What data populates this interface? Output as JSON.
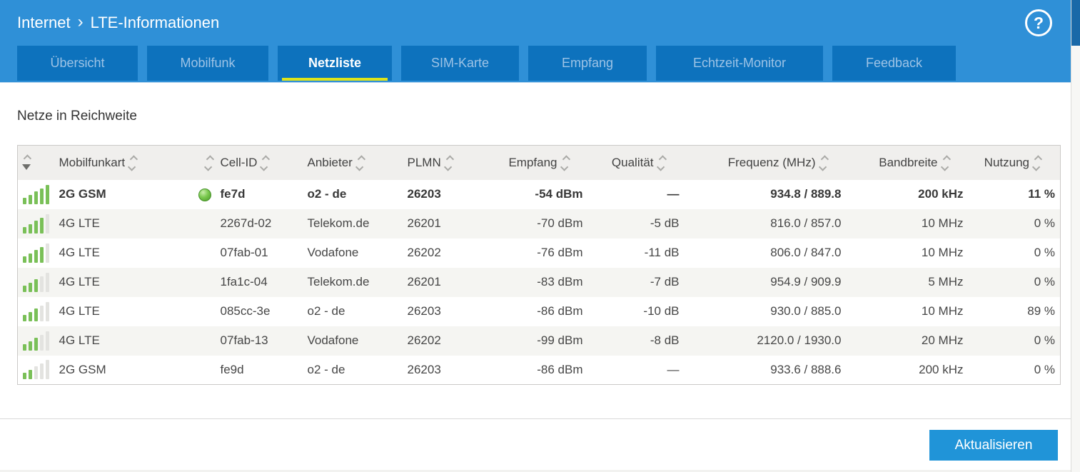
{
  "header": {
    "breadcrumb": {
      "section": "Internet",
      "separator": "›",
      "page": "LTE-Informationen"
    },
    "help_label": "?",
    "tabs": [
      {
        "label": "Übersicht",
        "active": false
      },
      {
        "label": "Mobilfunk",
        "active": false
      },
      {
        "label": "Netzliste",
        "active": true
      },
      {
        "label": "SIM-Karte",
        "active": false
      },
      {
        "label": "Empfang",
        "active": false
      },
      {
        "label": "Echtzeit-Monitor",
        "active": false
      },
      {
        "label": "Feedback",
        "active": false
      }
    ]
  },
  "content": {
    "section_title": "Netze in Reichweite",
    "table": {
      "columns": [
        {
          "key": "signal",
          "label": "",
          "align": "left",
          "sorted": "desc"
        },
        {
          "key": "mobilfunkart",
          "label": "Mobilfunkart",
          "align": "left"
        },
        {
          "key": "status",
          "label": "",
          "align": "right"
        },
        {
          "key": "cell_id",
          "label": "Cell-ID",
          "align": "left"
        },
        {
          "key": "anbieter",
          "label": "Anbieter",
          "align": "left"
        },
        {
          "key": "plmn",
          "label": "PLMN",
          "align": "left"
        },
        {
          "key": "empfang",
          "label": "Empfang",
          "align": "right"
        },
        {
          "key": "qualitaet",
          "label": "Qualität",
          "align": "right"
        },
        {
          "key": "frequenz",
          "label": "Frequenz (MHz)",
          "align": "right"
        },
        {
          "key": "bandbreite",
          "label": "Bandbreite",
          "align": "right"
        },
        {
          "key": "nutzung",
          "label": "Nutzung",
          "align": "right"
        }
      ],
      "rows": [
        {
          "signal_bars": 5,
          "mobilfunkart": "2G GSM",
          "connected": true,
          "cell_id": "fe7d",
          "anbieter": "o2 - de",
          "plmn": "26203",
          "empfang": "-54 dBm",
          "qualitaet": "—",
          "frequenz": "934.8 / 889.8",
          "bandbreite": "200 kHz",
          "nutzung": "11 %"
        },
        {
          "signal_bars": 4,
          "mobilfunkart": "4G LTE",
          "connected": false,
          "cell_id": "2267d-02",
          "anbieter": "Telekom.de",
          "plmn": "26201",
          "empfang": "-70 dBm",
          "qualitaet": "-5 dB",
          "frequenz": "816.0 / 857.0",
          "bandbreite": "10 MHz",
          "nutzung": "0 %"
        },
        {
          "signal_bars": 4,
          "mobilfunkart": "4G LTE",
          "connected": false,
          "cell_id": "07fab-01",
          "anbieter": "Vodafone",
          "plmn": "26202",
          "empfang": "-76 dBm",
          "qualitaet": "-11 dB",
          "frequenz": "806.0 / 847.0",
          "bandbreite": "10 MHz",
          "nutzung": "0 %"
        },
        {
          "signal_bars": 3,
          "mobilfunkart": "4G LTE",
          "connected": false,
          "cell_id": "1fa1c-04",
          "anbieter": "Telekom.de",
          "plmn": "26201",
          "empfang": "-83 dBm",
          "qualitaet": "-7 dB",
          "frequenz": "954.9 / 909.9",
          "bandbreite": "5 MHz",
          "nutzung": "0 %"
        },
        {
          "signal_bars": 3,
          "mobilfunkart": "4G LTE",
          "connected": false,
          "cell_id": "085cc-3e",
          "anbieter": "o2 - de",
          "plmn": "26203",
          "empfang": "-86 dBm",
          "qualitaet": "-10 dB",
          "frequenz": "930.0 / 885.0",
          "bandbreite": "10 MHz",
          "nutzung": "89 %"
        },
        {
          "signal_bars": 3,
          "mobilfunkart": "4G LTE",
          "connected": false,
          "cell_id": "07fab-13",
          "anbieter": "Vodafone",
          "plmn": "26202",
          "empfang": "-99 dBm",
          "qualitaet": "-8 dB",
          "frequenz": "2120.0 / 1930.0",
          "bandbreite": "20 MHz",
          "nutzung": "0 %"
        },
        {
          "signal_bars": 2,
          "mobilfunkart": "2G GSM",
          "connected": false,
          "cell_id": "fe9d",
          "anbieter": "o2 - de",
          "plmn": "26203",
          "empfang": "-86 dBm",
          "qualitaet": "—",
          "frequenz": "933.6 / 888.6",
          "bandbreite": "200 kHz",
          "nutzung": "0 %"
        }
      ]
    },
    "refresh_button": "Aktualisieren"
  },
  "colors": {
    "header_blue": "#2f90d7",
    "tab_blue": "#0d72bd",
    "active_tab_underline": "#dde31a",
    "button_blue": "#2094d8",
    "signal_green": "#7ac058",
    "status_dot_green": "#62b83e"
  }
}
